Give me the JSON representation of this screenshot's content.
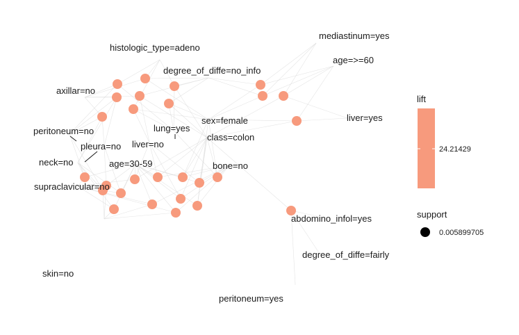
{
  "colors": {
    "node": "#f79a7d",
    "edge": "#d9d9d9",
    "background": "#ffffff"
  },
  "legend": {
    "lift_title": "lift",
    "lift_value": "24.21429",
    "support_title": "support",
    "support_value": "0.005899705"
  },
  "graph": {
    "items": [
      {
        "id": "histologic_type",
        "label": "histologic_type=adeno"
      },
      {
        "id": "mediastinum",
        "label": "mediastinum=yes"
      },
      {
        "id": "age60",
        "label": "age=>=60"
      },
      {
        "id": "diffe_noinfo",
        "label": "degree_of_diffe=no_info"
      },
      {
        "id": "axillar",
        "label": "axillar=no"
      },
      {
        "id": "liver_yes",
        "label": "liver=yes"
      },
      {
        "id": "sex_female",
        "label": "sex=female"
      },
      {
        "id": "lung_yes",
        "label": "lung=yes"
      },
      {
        "id": "peritoneum_no",
        "label": "peritoneum=no"
      },
      {
        "id": "class_colon",
        "label": "class=colon"
      },
      {
        "id": "liver_no",
        "label": "liver=no"
      },
      {
        "id": "pleura_no",
        "label": "pleura=no"
      },
      {
        "id": "neck_no",
        "label": "neck=no"
      },
      {
        "id": "age30",
        "label": "age=30-59"
      },
      {
        "id": "bone_no",
        "label": "bone=no"
      },
      {
        "id": "supraclavicular",
        "label": "supraclavicular=no"
      },
      {
        "id": "abdomino",
        "label": "abdomino_infol=yes"
      },
      {
        "id": "diffe_fairly",
        "label": "degree_of_diffe=fairly"
      },
      {
        "id": "skin_no",
        "label": "skin=no"
      },
      {
        "id": "peritoneum_yes",
        "label": "peritoneum=yes"
      }
    ],
    "rule_count": 24
  }
}
